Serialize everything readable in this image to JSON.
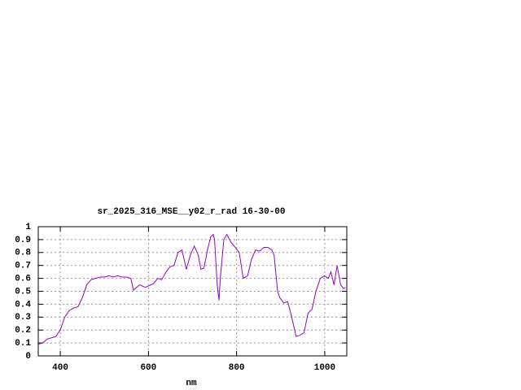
{
  "chart_data": {
    "type": "line",
    "title": "sr_2025_316_MSE__y02_r_rad 16-30-00",
    "x_label": "nm",
    "x": [
      350,
      360,
      370,
      380,
      390,
      400,
      410,
      420,
      430,
      440,
      450,
      460,
      470,
      480,
      490,
      500,
      510,
      520,
      530,
      540,
      550,
      560,
      566,
      580,
      593,
      612,
      621,
      630,
      640,
      649,
      658,
      667,
      676,
      686,
      695,
      704,
      713,
      719,
      726,
      734,
      741,
      747,
      750,
      756,
      760,
      763,
      771,
      778,
      787,
      797,
      806,
      815,
      825,
      834,
      843,
      852,
      862,
      871,
      880,
      885,
      893,
      898,
      907,
      916,
      925,
      935,
      944,
      953,
      962,
      971,
      980,
      990,
      999,
      1008,
      1014,
      1021,
      1028,
      1036,
      1043,
      1047
    ],
    "series": [
      {
        "color": "#9400d3",
        "values": [
          0.09,
          0.1,
          0.13,
          0.14,
          0.15,
          0.2,
          0.3,
          0.35,
          0.37,
          0.38,
          0.45,
          0.55,
          0.59,
          0.6,
          0.61,
          0.61,
          0.62,
          0.61,
          0.62,
          0.61,
          0.61,
          0.6,
          0.51,
          0.55,
          0.53,
          0.56,
          0.6,
          0.59,
          0.65,
          0.69,
          0.7,
          0.8,
          0.82,
          0.67,
          0.78,
          0.85,
          0.78,
          0.67,
          0.68,
          0.82,
          0.92,
          0.94,
          0.9,
          0.55,
          0.43,
          0.6,
          0.9,
          0.94,
          0.88,
          0.84,
          0.8,
          0.6,
          0.62,
          0.75,
          0.82,
          0.81,
          0.84,
          0.84,
          0.82,
          0.78,
          0.5,
          0.45,
          0.41,
          0.42,
          0.3,
          0.15,
          0.16,
          0.18,
          0.33,
          0.36,
          0.5,
          0.6,
          0.62,
          0.6,
          0.65,
          0.55,
          0.7,
          0.55,
          0.52,
          0.53
        ]
      }
    ],
    "xlim": [
      350,
      1050
    ],
    "xticks": [
      400,
      600,
      800,
      1000
    ],
    "ylim": [
      0,
      1
    ],
    "yticks": [
      0,
      0.1,
      0.2,
      0.3,
      0.4,
      0.5,
      0.6,
      0.7,
      0.8,
      0.9,
      1
    ],
    "grid": true
  }
}
